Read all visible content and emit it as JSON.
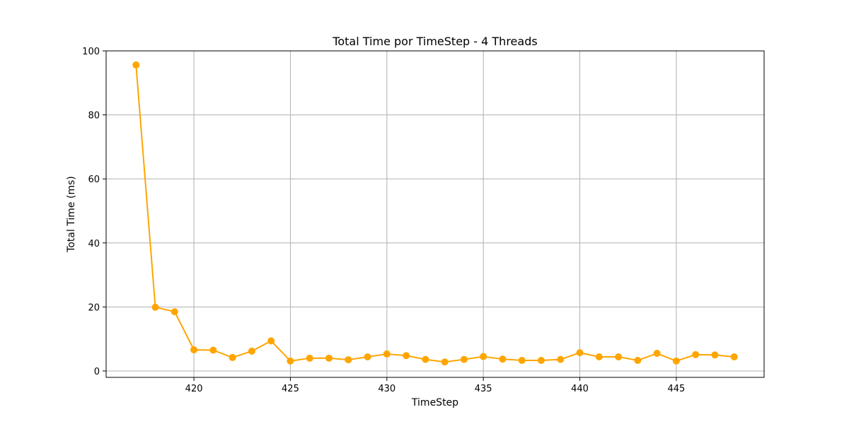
{
  "chart_data": {
    "type": "line",
    "title": "Total Time por TimeStep - 4 Threads",
    "xlabel": "TimeStep",
    "ylabel": "Total Time (ms)",
    "xlim": [
      415.45,
      449.55
    ],
    "ylim": [
      -2.0,
      100.0
    ],
    "xticks": [
      420,
      425,
      430,
      435,
      440,
      445
    ],
    "yticks": [
      0,
      20,
      40,
      60,
      80,
      100
    ],
    "grid": true,
    "series": [
      {
        "name": "Total Time",
        "color": "#ffa500",
        "marker": "circle",
        "x": [
          417,
          418,
          419,
          420,
          421,
          422,
          423,
          424,
          425,
          426,
          427,
          428,
          429,
          430,
          431,
          432,
          433,
          434,
          435,
          436,
          437,
          438,
          439,
          440,
          441,
          442,
          443,
          444,
          445,
          446,
          447,
          448
        ],
        "y": [
          95.6,
          19.9,
          18.5,
          6.6,
          6.5,
          4.2,
          6.2,
          9.4,
          3.1,
          4.0,
          4.0,
          3.5,
          4.4,
          5.3,
          4.8,
          3.6,
          2.8,
          3.6,
          4.5,
          3.7,
          3.3,
          3.3,
          3.6,
          5.7,
          4.4,
          4.4,
          3.3,
          5.5,
          3.1,
          5.1,
          5.0,
          4.4
        ]
      }
    ]
  }
}
